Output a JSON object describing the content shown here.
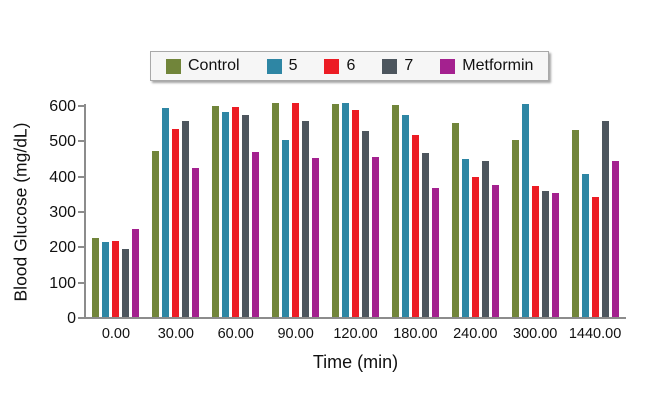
{
  "figure": {
    "xlabel": "Time (min)",
    "ylabel": "Blood Glucose (mg/dL)"
  },
  "chart_data": {
    "type": "bar",
    "title": "",
    "xlabel": "Time (min)",
    "ylabel": "Blood Glucose (mg/dL)",
    "categories": [
      "0.00",
      "30.00",
      "60.00",
      "90.00",
      "120.00",
      "180.00",
      "240.00",
      "300.00",
      "1440.00"
    ],
    "series": [
      {
        "name": "Control",
        "color": "#71853A",
        "values": [
          225,
          470,
          597,
          605,
          604,
          600,
          550,
          500,
          528
        ]
      },
      {
        "name": "5",
        "color": "#2E86A4",
        "values": [
          213,
          592,
          580,
          500,
          606,
          572,
          446,
          604,
          406
        ]
      },
      {
        "name": "6",
        "color": "#EC1C24",
        "values": [
          214,
          532,
          595,
          607,
          585,
          516,
          396,
          370,
          340
        ]
      },
      {
        "name": "7",
        "color": "#4D565E",
        "values": [
          194,
          556,
          572,
          556,
          527,
          465,
          441,
          356,
          556
        ]
      },
      {
        "name": "Metformin",
        "color": "#A4218F",
        "values": [
          250,
          421,
          466,
          451,
          452,
          364,
          374,
          351,
          441
        ]
      }
    ],
    "ylim": [
      0,
      600
    ],
    "yticks": [
      0,
      100,
      200,
      300,
      400,
      500,
      600
    ],
    "grid": false,
    "legend_position": "top-center",
    "axis_color": "#8c8c8c",
    "background_color": "#ffffff"
  }
}
